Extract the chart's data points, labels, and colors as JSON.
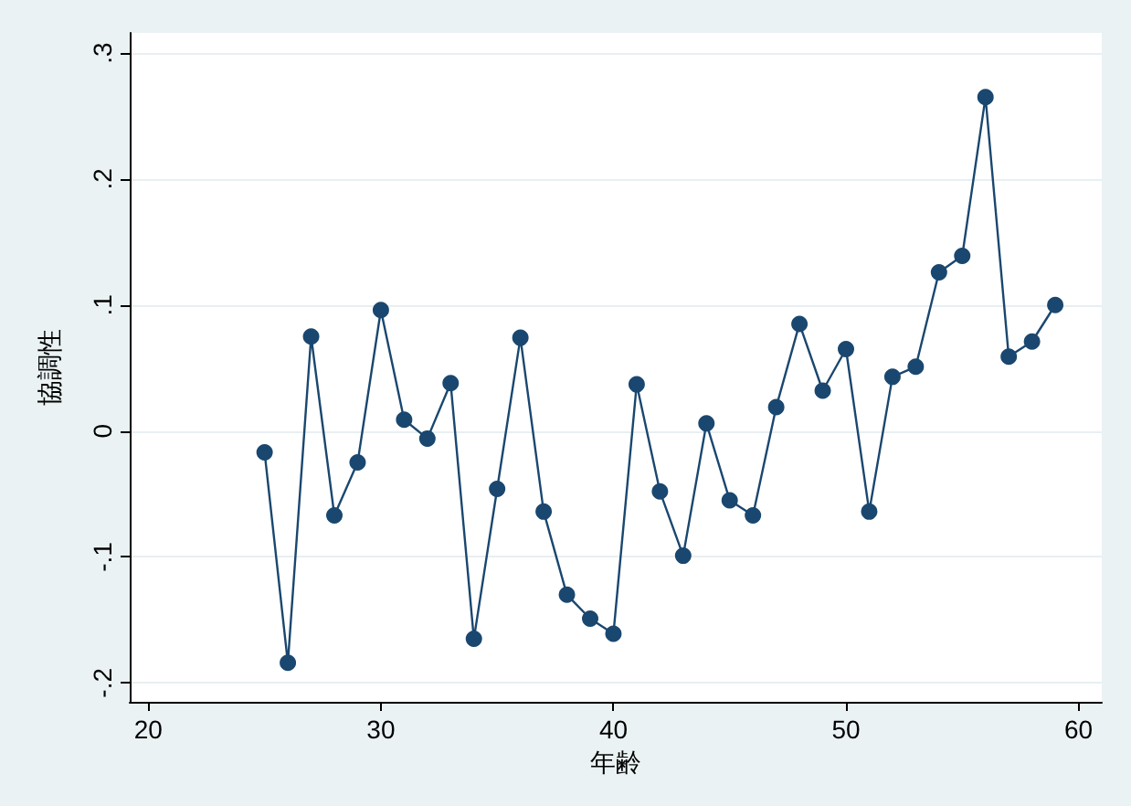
{
  "chart_data": {
    "type": "line",
    "xlabel": "年齢",
    "ylabel": "協調性",
    "x": [
      25,
      26,
      27,
      28,
      29,
      30,
      31,
      32,
      33,
      34,
      35,
      36,
      37,
      38,
      39,
      40,
      41,
      42,
      43,
      44,
      45,
      46,
      47,
      48,
      49,
      50,
      51,
      52,
      53,
      54,
      55,
      56,
      57,
      58,
      59
    ],
    "series": [
      {
        "color": "#1a476f",
        "values": [
          -0.017,
          -0.184,
          0.075,
          -0.067,
          -0.025,
          0.096,
          0.009,
          -0.006,
          0.038,
          -0.165,
          -0.046,
          0.074,
          -0.064,
          -0.13,
          -0.149,
          -0.161,
          0.037,
          -0.048,
          -0.099,
          0.006,
          -0.055,
          -0.067,
          0.019,
          0.085,
          0.032,
          0.065,
          -0.064,
          0.043,
          0.051,
          0.126,
          0.139,
          0.265,
          0.059,
          0.071,
          0.1
        ]
      }
    ],
    "xlim": [
      19.2,
      61
    ],
    "xticks": [
      20,
      30,
      40,
      50,
      60
    ],
    "ylim": [
      -0.215,
      0.316
    ],
    "yticks": [
      {
        "value": -0.2,
        "label": "-.2"
      },
      {
        "value": -0.1,
        "label": "-.1"
      },
      0,
      {
        "value": 0.1,
        "label": ".1"
      },
      {
        "value": 0.2,
        "label": ".2"
      },
      {
        "value": 0.3,
        "label": ".3"
      }
    ],
    "grid": "y",
    "marker": "circle",
    "line_style": "solid"
  }
}
